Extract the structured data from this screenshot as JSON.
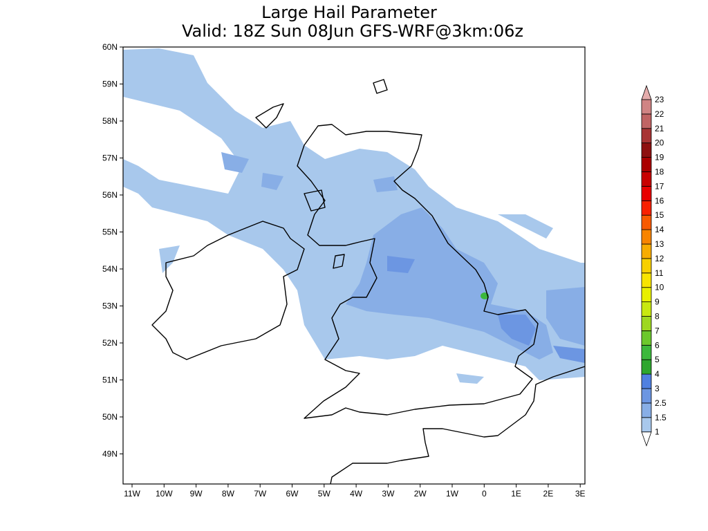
{
  "title": "Large Hail Parameter",
  "subtitle": "Valid: 18Z Sun 08Jun GFS-WRF@3km:06z",
  "lat_ticks": [
    "60N",
    "59N",
    "58N",
    "57N",
    "56N",
    "55N",
    "54N",
    "53N",
    "52N",
    "51N",
    "50N",
    "49N"
  ],
  "lon_ticks": [
    "11W",
    "10W",
    "9W",
    "8W",
    "7W",
    "6W",
    "5W",
    "4W",
    "3W",
    "2W",
    "1W",
    "0",
    "1E",
    "2E",
    "3E"
  ],
  "colorbar": {
    "levels": [
      1,
      1.5,
      2.5,
      3,
      4,
      5,
      6,
      7,
      8,
      9,
      10,
      11,
      12,
      13,
      14,
      15,
      16,
      17,
      18,
      19,
      20,
      21,
      22,
      23
    ],
    "colors": [
      "#ffffff",
      "#a8c8ec",
      "#88aee6",
      "#6c96e2",
      "#5080e0",
      "#2ea62e",
      "#3cb83c",
      "#6cc82c",
      "#9ed820",
      "#c8e810",
      "#e8f000",
      "#f8e400",
      "#f8d000",
      "#f8ac00",
      "#f88400",
      "#f85a00",
      "#f82000",
      "#e80000",
      "#c80000",
      "#aa0000",
      "#8e1010",
      "#a83434",
      "#c06464",
      "#d08484",
      "#e4acac"
    ]
  }
}
